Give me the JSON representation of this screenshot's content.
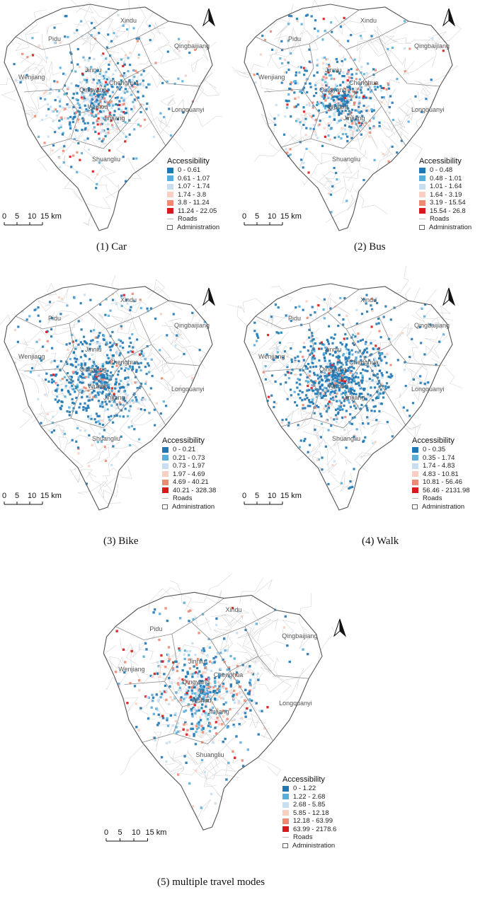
{
  "places": [
    "Pidu",
    "Xindu",
    "Qingbaijiang",
    "Wenjiang",
    "Jinniu",
    "Chenghua",
    "Qingyang",
    "Wuhou",
    "Jinjiang",
    "Longquanyi",
    "Shuangliu"
  ],
  "scale_labels": [
    "0",
    "5",
    "10",
    "15 km"
  ],
  "legend_title": "Accessibility",
  "legend_roads": "Roads",
  "legend_admin": "Administration",
  "class_colors": [
    "#1f78b4",
    "#5aaedc",
    "#c7dff0",
    "#f7cfc3",
    "#ef8a72",
    "#d7191c"
  ],
  "panels": [
    {
      "caption": "(1) Car",
      "classes": [
        "0 - 0.61",
        "0.61 - 1.07",
        "1.07 - 1.74",
        "1.74 - 3.8",
        "3.8 - 11.24",
        "11.24 - 22.05"
      ],
      "mix": [
        0.34,
        0.22,
        0.18,
        0.12,
        0.09,
        0.05
      ]
    },
    {
      "caption": "(2) Bus",
      "classes": [
        "0 - 0.48",
        "0.48 - 1.01",
        "1.01 - 1.64",
        "1.64 - 3.19",
        "3.19 - 15.54",
        "15.54 - 26.8"
      ],
      "mix": [
        0.4,
        0.22,
        0.16,
        0.1,
        0.08,
        0.04
      ]
    },
    {
      "caption": "(3) Bike",
      "classes": [
        "0 - 0.21",
        "0.21 - 0.73",
        "0.73 - 1.97",
        "1.97 - 4.69",
        "4.69 - 40.21",
        "40.21 - 328.38"
      ],
      "mix": [
        0.56,
        0.14,
        0.14,
        0.08,
        0.05,
        0.03
      ]
    },
    {
      "caption": "(4) Walk",
      "classes": [
        "0 - 0.35",
        "0.35 - 1.74",
        "1.74 - 4.83",
        "4.83 - 10.81",
        "10.81 - 56.46",
        "56.46 - 2131.98"
      ],
      "mix": [
        0.7,
        0.12,
        0.08,
        0.05,
        0.03,
        0.02
      ]
    },
    {
      "caption": "(5) multiple travel modes",
      "classes": [
        "0 - 1.22",
        "1.22 - 2.68",
        "2.68 - 5.85",
        "5.85 - 12.18",
        "12.18 - 63.99",
        "63.99 - 2178.6"
      ],
      "mix": [
        0.3,
        0.22,
        0.18,
        0.14,
        0.1,
        0.06
      ]
    }
  ]
}
